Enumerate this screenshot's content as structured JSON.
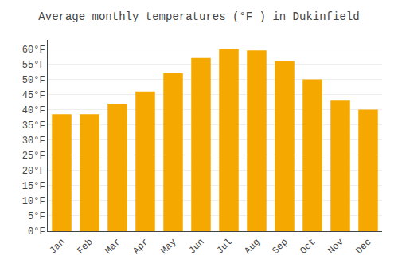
{
  "chart_data": {
    "type": "bar",
    "title": "Average monthly temperatures (°F ) in Dukinfield",
    "categories": [
      "Jan",
      "Feb",
      "Mar",
      "Apr",
      "May",
      "Jun",
      "Jul",
      "Aug",
      "Sep",
      "Oct",
      "Nov",
      "Dec"
    ],
    "values": [
      38.5,
      38.5,
      42.0,
      46.0,
      52.0,
      57.0,
      60.0,
      59.5,
      56.0,
      50.0,
      43.0,
      40.0
    ],
    "color": "#F5A800",
    "ylim": [
      0,
      63
    ],
    "yticks": [
      {
        "value": 0,
        "label": "0°F"
      },
      {
        "value": 5,
        "label": "5°F"
      },
      {
        "value": 10,
        "label": "10°F"
      },
      {
        "value": 15,
        "label": "15°F"
      },
      {
        "value": 20,
        "label": "20°F"
      },
      {
        "value": 25,
        "label": "25°F"
      },
      {
        "value": 30,
        "label": "30°F"
      },
      {
        "value": 35,
        "label": "35°F"
      },
      {
        "value": 40,
        "label": "40°F"
      },
      {
        "value": 45,
        "label": "45°F"
      },
      {
        "value": 50,
        "label": "50°F"
      },
      {
        "value": 55,
        "label": "55°F"
      },
      {
        "value": 60,
        "label": "60°F"
      }
    ],
    "grid": true
  }
}
